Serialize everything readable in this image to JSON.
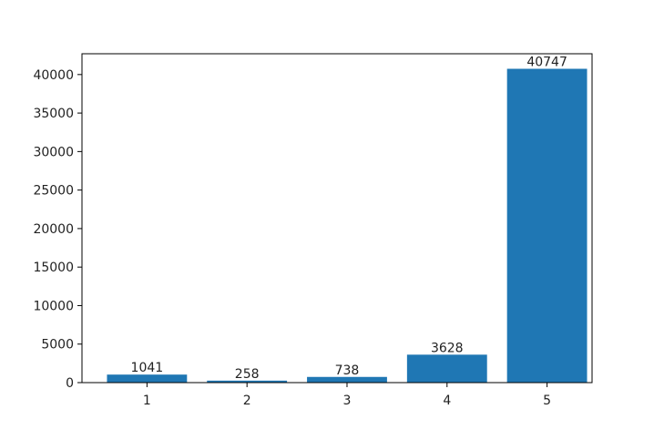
{
  "chart_data": {
    "type": "bar",
    "categories": [
      "1",
      "2",
      "3",
      "4",
      "5"
    ],
    "values": [
      1041,
      258,
      738,
      3628,
      40747
    ],
    "data_labels": [
      "1041",
      "258",
      "738",
      "3628",
      "40747"
    ],
    "title": "",
    "xlabel": "",
    "ylabel": "",
    "ylim": [
      0,
      42700
    ],
    "yticks": [
      0,
      5000,
      10000,
      15000,
      20000,
      25000,
      30000,
      35000,
      40000
    ],
    "grid": false,
    "legend": "none",
    "bar_color": "#1f77b4"
  }
}
